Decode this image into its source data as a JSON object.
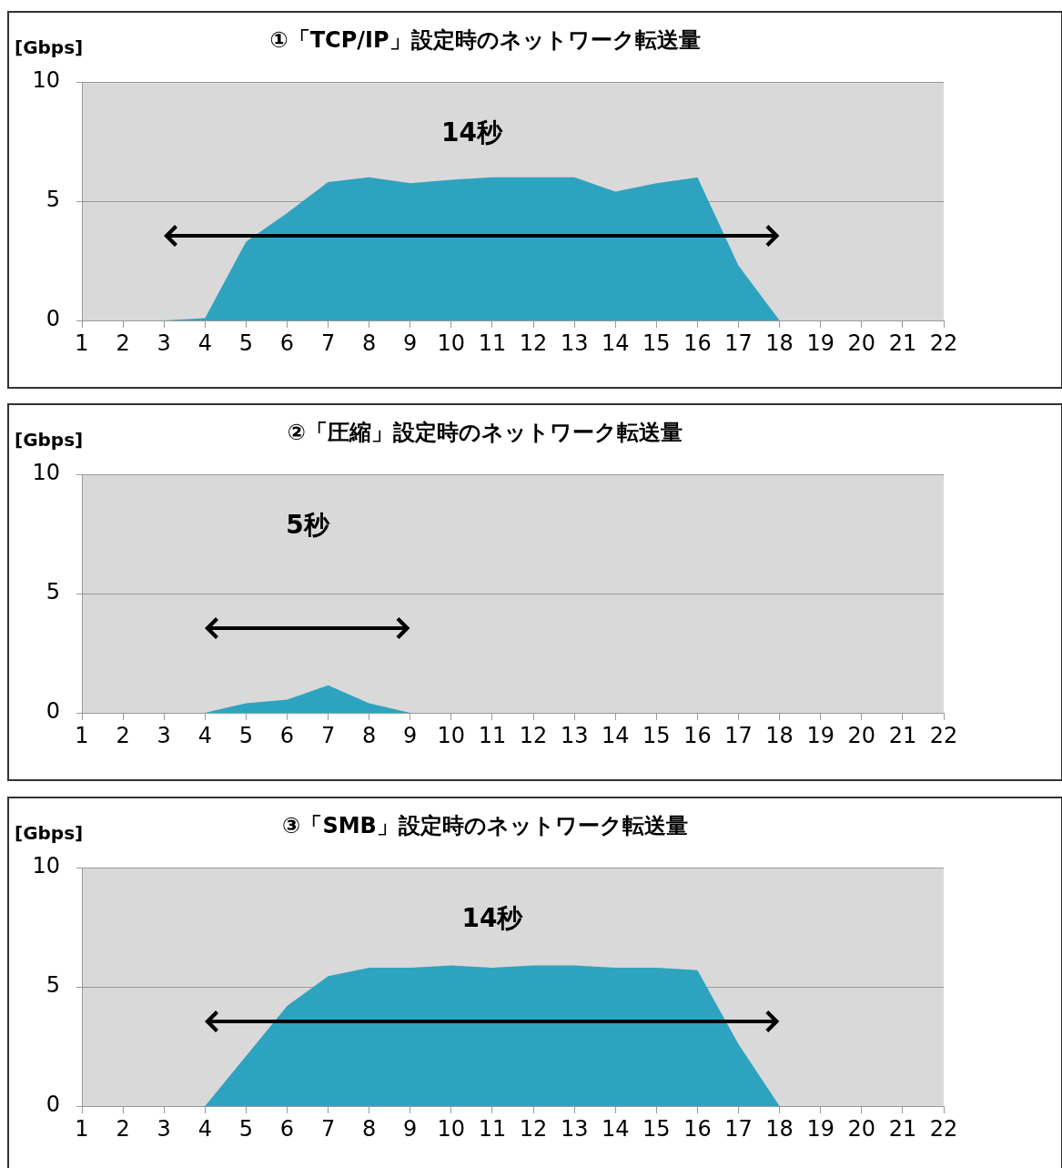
{
  "chart_data": [
    {
      "type": "area",
      "title": "①「TCP/IP」設定時のネットワーク転送量",
      "ylabel": "[Gbps]",
      "x": [
        1,
        2,
        3,
        4,
        5,
        6,
        7,
        8,
        9,
        10,
        11,
        12,
        13,
        14,
        15,
        16,
        17,
        18,
        19,
        20,
        21,
        22
      ],
      "xlim": [
        1,
        22
      ],
      "xticks": [
        1,
        2,
        3,
        4,
        5,
        6,
        7,
        8,
        9,
        10,
        11,
        12,
        13,
        14,
        15,
        16,
        17,
        18,
        19,
        20,
        21,
        22
      ],
      "ylim": [
        0,
        10
      ],
      "yticks": [
        0,
        5,
        10
      ],
      "grid": "y",
      "annotations": [
        "14秒"
      ],
      "series": [
        {
          "color": "#2ea3c0",
          "values": [
            0,
            0,
            0,
            0.1,
            3.3,
            4.5,
            5.8,
            6.0,
            5.75,
            5.9,
            6.0,
            6.0,
            6.0,
            5.4,
            5.75,
            6.0,
            2.3,
            0,
            0,
            0,
            0,
            0
          ]
        }
      ]
    },
    {
      "type": "area",
      "title": "②「圧縮」設定時のネットワーク転送量",
      "ylabel": "[Gbps]",
      "x": [
        1,
        2,
        3,
        4,
        5,
        6,
        7,
        8,
        9,
        10,
        11,
        12,
        13,
        14,
        15,
        16,
        17,
        18,
        19,
        20,
        21,
        22
      ],
      "xlim": [
        1,
        22
      ],
      "xticks": [
        1,
        2,
        3,
        4,
        5,
        6,
        7,
        8,
        9,
        10,
        11,
        12,
        13,
        14,
        15,
        16,
        17,
        18,
        19,
        20,
        21,
        22
      ],
      "ylim": [
        0,
        10
      ],
      "yticks": [
        0,
        5,
        10
      ],
      "grid": "y",
      "annotations": [
        "5秒"
      ],
      "series": [
        {
          "color": "#2ea3c0",
          "values": [
            0,
            0,
            0,
            0,
            0.4,
            0.55,
            1.15,
            0.4,
            0,
            0,
            0,
            0,
            0,
            0,
            0,
            0,
            0,
            0,
            0,
            0,
            0,
            0
          ]
        }
      ]
    },
    {
      "type": "area",
      "title": "③「SMB」設定時のネットワーク転送量",
      "ylabel": "[Gbps]",
      "x": [
        1,
        2,
        3,
        4,
        5,
        6,
        7,
        8,
        9,
        10,
        11,
        12,
        13,
        14,
        15,
        16,
        17,
        18,
        19,
        20,
        21,
        22
      ],
      "xlim": [
        1,
        22
      ],
      "xticks": [
        1,
        2,
        3,
        4,
        5,
        6,
        7,
        8,
        9,
        10,
        11,
        12,
        13,
        14,
        15,
        16,
        17,
        18,
        19,
        20,
        21,
        22
      ],
      "ylim": [
        0,
        10
      ],
      "yticks": [
        0,
        5,
        10
      ],
      "grid": "y",
      "annotations": [
        "14秒"
      ],
      "series": [
        {
          "color": "#2ea3c0",
          "values": [
            0,
            0,
            0,
            0,
            2.1,
            4.2,
            5.45,
            5.8,
            5.8,
            5.9,
            5.8,
            5.9,
            5.9,
            5.8,
            5.8,
            5.7,
            2.6,
            0,
            0,
            0,
            0,
            0
          ]
        }
      ]
    }
  ]
}
